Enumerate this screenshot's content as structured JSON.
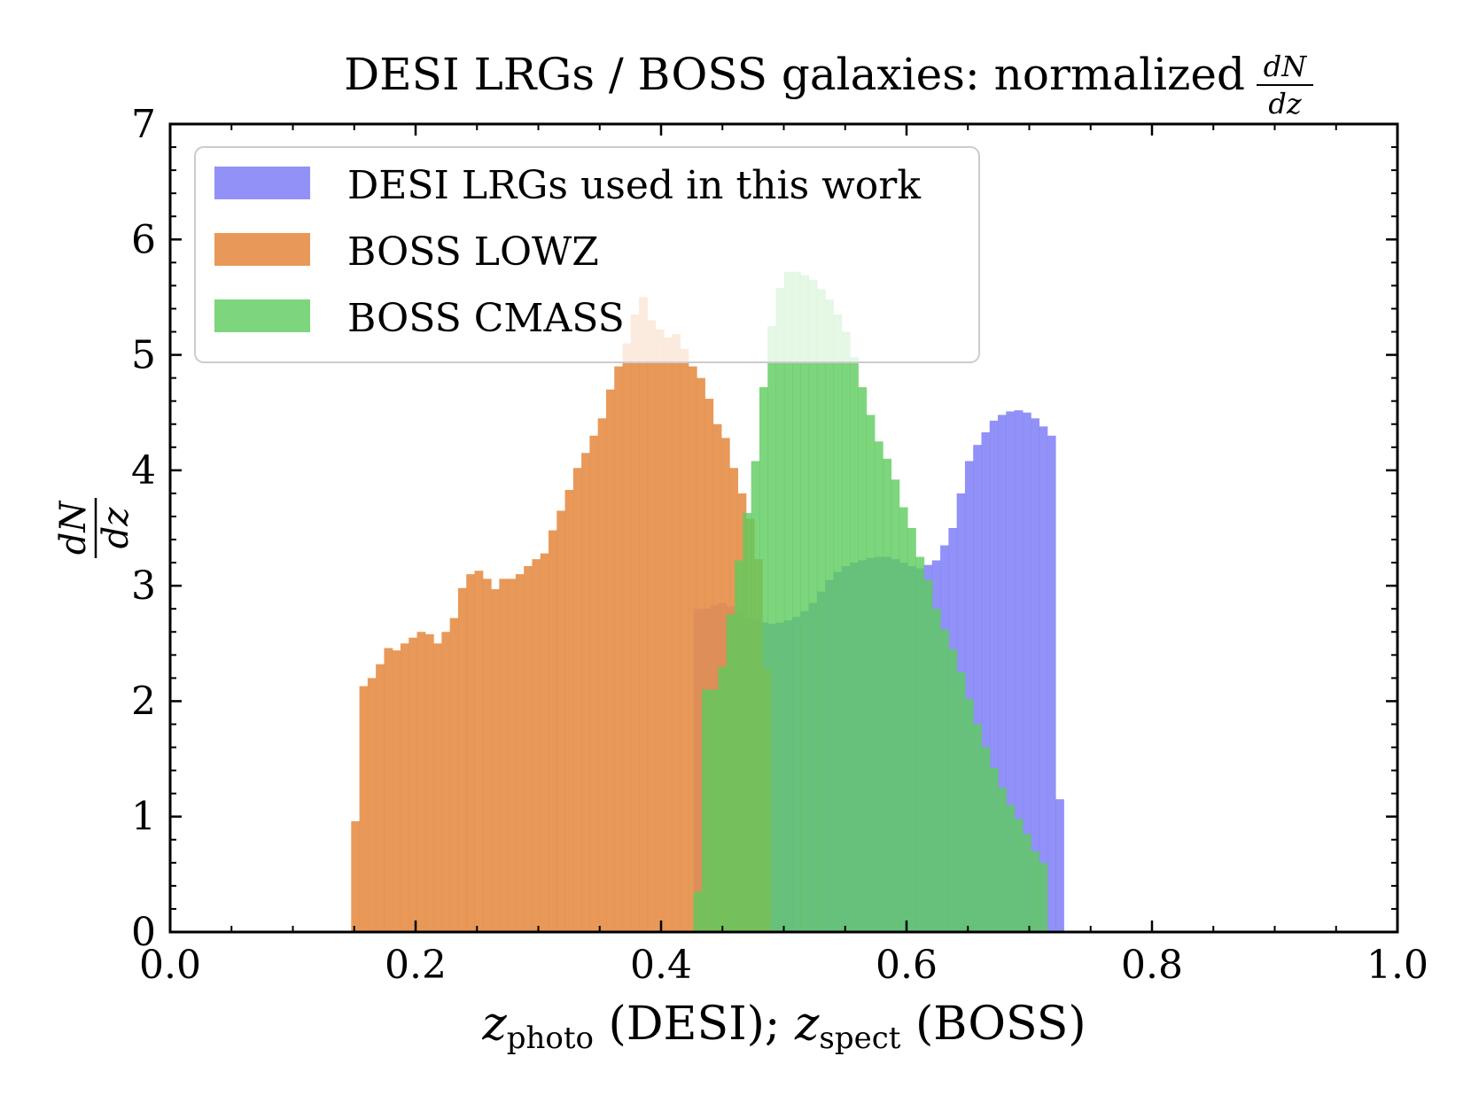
{
  "chart_data": {
    "type": "histogram",
    "title": "DESI LRGs / BOSS galaxies: normalized",
    "title_fraction": {
      "numerator": "dN",
      "denominator": "dz"
    },
    "xlabel": {
      "var1": "z",
      "sub1": "photo",
      "text1": " (DESI); ",
      "var2": "z",
      "sub2": "spect",
      "text2": " (BOSS)"
    },
    "ylabel": {
      "numerator": "dN",
      "denominator": "dz"
    },
    "xlim": [
      0.0,
      1.0
    ],
    "ylim": [
      0,
      7
    ],
    "xticks": [
      "0.0",
      "0.2",
      "0.4",
      "0.6",
      "0.8",
      "1.0"
    ],
    "yticks": [
      "0",
      "1",
      "2",
      "3",
      "4",
      "5",
      "6",
      "7"
    ],
    "bin_width": 0.0067,
    "series": [
      {
        "name": "DESI LRGs used in this work",
        "color": "#8585f7",
        "opacity": 0.9,
        "x_start": 0.4265,
        "values": [
          2.8,
          2.8,
          2.83,
          2.85,
          2.82,
          2.78,
          2.72,
          2.7,
          2.68,
          2.67,
          2.68,
          2.7,
          2.73,
          2.78,
          2.85,
          2.95,
          3.05,
          3.12,
          3.17,
          3.2,
          3.22,
          3.24,
          3.25,
          3.25,
          3.23,
          3.2,
          3.17,
          3.15,
          3.18,
          3.22,
          3.35,
          3.5,
          3.8,
          4.08,
          4.22,
          4.33,
          4.43,
          4.48,
          4.51,
          4.52,
          4.5,
          4.45,
          4.38,
          4.3,
          1.15
        ]
      },
      {
        "name": "BOSS LOWZ",
        "color": "#e58e47",
        "opacity": 0.9,
        "x_start": 0.1475,
        "values": [
          0.96,
          2.13,
          2.2,
          2.32,
          2.46,
          2.44,
          2.5,
          2.55,
          2.6,
          2.58,
          2.5,
          2.6,
          2.72,
          2.98,
          3.1,
          3.13,
          3.06,
          2.97,
          3.06,
          3.06,
          3.1,
          3.17,
          3.23,
          3.28,
          3.48,
          3.65,
          3.83,
          4.02,
          4.15,
          4.3,
          4.45,
          4.7,
          4.9,
          5.1,
          5.35,
          5.5,
          5.3,
          5.22,
          5.15,
          5.18,
          5.05,
          4.9,
          4.8,
          4.62,
          4.4,
          4.28,
          4.02,
          3.8,
          3.58,
          3.23,
          2.28,
          0.0
        ]
      },
      {
        "name": "BOSS CMASS",
        "color": "#5ccc5c",
        "opacity": 0.8,
        "x_start": 0.4265,
        "values": [
          0.35,
          2.1,
          2.1,
          2.3,
          2.75,
          3.22,
          3.63,
          4.08,
          4.72,
          5.25,
          5.58,
          5.72,
          5.72,
          5.69,
          5.65,
          5.57,
          5.48,
          5.35,
          5.2,
          4.98,
          4.72,
          4.48,
          4.25,
          4.1,
          3.92,
          3.68,
          3.5,
          3.25,
          3.05,
          2.8,
          2.62,
          2.45,
          2.25,
          2.02,
          1.8,
          1.6,
          1.42,
          1.25,
          1.1,
          0.98,
          0.85,
          0.7,
          0.6,
          0.0
        ]
      }
    ],
    "legend": {
      "position": "upper-left"
    }
  }
}
